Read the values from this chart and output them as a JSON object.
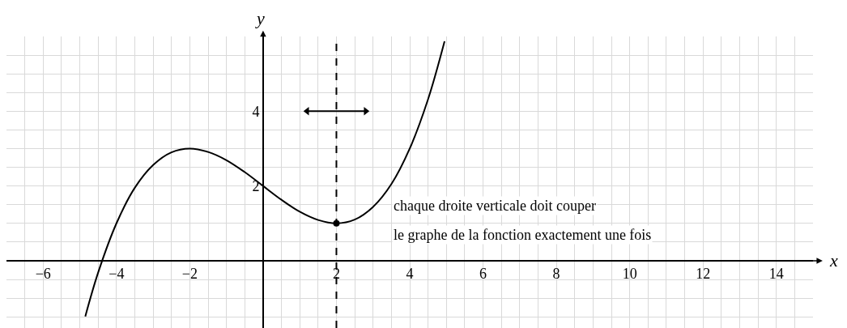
{
  "chart_data": {
    "type": "line",
    "xlabel": "x",
    "ylabel": "y",
    "xlim": [
      -7,
      15
    ],
    "ylim": [
      -1.8,
      6
    ],
    "xticks": [
      -6,
      -4,
      -2,
      2,
      4,
      6,
      8,
      10,
      12,
      14
    ],
    "yticks": [
      2,
      4
    ],
    "grid": true,
    "series": [
      {
        "color": "#000000",
        "marker": "none",
        "x": [
          -4.85,
          -4.5,
          -4,
          -3.5,
          -3,
          -2.5,
          -2,
          -1.5,
          -1,
          -0.5,
          0,
          0.5,
          1,
          1.5,
          2,
          2.5,
          3,
          3.5,
          4,
          4.5,
          4.95
        ],
        "values": [
          -1.49,
          -0.32,
          1,
          1.95,
          2.56,
          2.9,
          3,
          2.91,
          2.69,
          2.37,
          2,
          1.63,
          1.31,
          1.09,
          1,
          1.1,
          1.44,
          2.05,
          3,
          4.32,
          5.87
        ]
      },
      {
        "type": "scatter",
        "color": "#000000",
        "marker": "circle",
        "x": [
          2
        ],
        "values": [
          1
        ]
      },
      {
        "type": "line",
        "color": "#000000",
        "marker": "triangle",
        "x": [
          1.2,
          2.8
        ],
        "values": [
          4,
          4
        ]
      }
    ],
    "ref_lines": [
      {
        "axis": "x",
        "value": 2,
        "color": "#000000",
        "line_style": "dashed"
      }
    ],
    "annotations": [
      "chaque droite verticale doit couper",
      "le graphe de la fonction exactement une fois"
    ]
  }
}
